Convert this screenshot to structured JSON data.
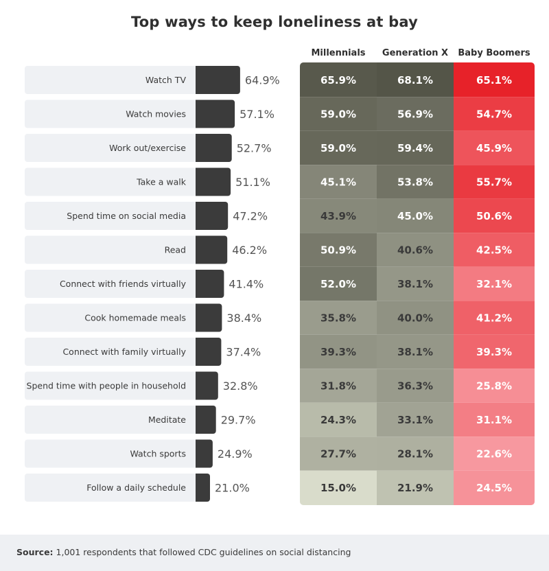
{
  "title": "Top ways to keep loneliness at bay",
  "columns": [
    "Millennials",
    "Generation X",
    "Baby Boomers"
  ],
  "source_label": "Source:",
  "source_text": "1,001 respondents that followed CDC guidelines on social distancing",
  "colors": {
    "row_bg": "#eff1f4",
    "bar": "#3b3b3b",
    "label": "#3a3a3a",
    "pct": "#555555",
    "gray_light": "#d9dccb",
    "gray_dark": "#545548",
    "red_light": "#fbb6bd",
    "red_dark": "#e61b22"
  },
  "chart_data": {
    "type": "bar",
    "title": "Top ways to keep loneliness at bay",
    "categories": [
      "Watch TV",
      "Watch movies",
      "Work out/exercise",
      "Take a walk",
      "Spend time on social media",
      "Read",
      "Connect with friends virtually",
      "Cook homemade meals",
      "Connect with family virtually",
      "Spend time with people in household",
      "Meditate",
      "Watch sports",
      "Follow a daily schedule"
    ],
    "values": [
      64.9,
      57.1,
      52.7,
      51.1,
      47.2,
      46.2,
      41.4,
      38.4,
      37.4,
      32.8,
      29.7,
      24.9,
      21.0
    ],
    "value_labels": [
      "64.9%",
      "57.1%",
      "52.7%",
      "51.1%",
      "47.2%",
      "46.2%",
      "41.4%",
      "38.4%",
      "37.4%",
      "32.8%",
      "29.7%",
      "24.9%",
      "21.0%"
    ],
    "table": {
      "type": "heatmap",
      "columns": [
        "Millennials",
        "Generation X",
        "Baby Boomers"
      ],
      "values": [
        [
          65.9,
          68.1,
          65.1
        ],
        [
          59.0,
          56.9,
          54.7
        ],
        [
          59.0,
          59.4,
          45.9
        ],
        [
          45.1,
          53.8,
          55.7
        ],
        [
          43.9,
          45.0,
          50.6
        ],
        [
          50.9,
          40.6,
          42.5
        ],
        [
          52.0,
          38.1,
          32.1
        ],
        [
          35.8,
          40.0,
          41.2
        ],
        [
          39.3,
          38.1,
          39.3
        ],
        [
          31.8,
          36.3,
          25.8
        ],
        [
          24.3,
          33.1,
          31.1
        ],
        [
          27.7,
          28.1,
          22.6
        ],
        [
          15.0,
          21.9,
          24.5
        ]
      ],
      "labels": [
        [
          "65.9%",
          "68.1%",
          "65.1%"
        ],
        [
          "59.0%",
          "56.9%",
          "54.7%"
        ],
        [
          "59.0%",
          "59.4%",
          "45.9%"
        ],
        [
          "45.1%",
          "53.8%",
          "55.7%"
        ],
        [
          "43.9%",
          "45.0%",
          "50.6%"
        ],
        [
          "50.9%",
          "40.6%",
          "42.5%"
        ],
        [
          "52.0%",
          "38.1%",
          "32.1%"
        ],
        [
          "35.8%",
          "40.0%",
          "41.2%"
        ],
        [
          "39.3%",
          "38.1%",
          "39.3%"
        ],
        [
          "31.8%",
          "36.3%",
          "25.8%"
        ],
        [
          "24.3%",
          "33.1%",
          "31.1%"
        ],
        [
          "27.7%",
          "28.1%",
          "22.6%"
        ],
        [
          "15.0%",
          "21.9%",
          "24.5%"
        ]
      ]
    }
  }
}
